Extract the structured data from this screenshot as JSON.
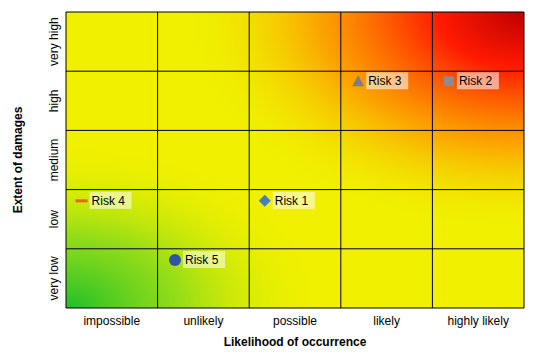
{
  "chart_data": {
    "type": "scatter",
    "xlabel": "Likelihood of occurrence",
    "ylabel": "Extent of damages",
    "xlim": [
      0,
      5
    ],
    "ylim": [
      0,
      5
    ],
    "xticks": [
      {
        "value": 0.5,
        "label": "impossible"
      },
      {
        "value": 1.5,
        "label": "unlikely"
      },
      {
        "value": 2.5,
        "label": "possible"
      },
      {
        "value": 3.5,
        "label": "likely"
      },
      {
        "value": 4.5,
        "label": "highly likely"
      }
    ],
    "yticks": [
      {
        "value": 0.5,
        "label": "very low"
      },
      {
        "value": 1.5,
        "label": "low"
      },
      {
        "value": 2.5,
        "label": "medium"
      },
      {
        "value": 3.5,
        "label": "high"
      },
      {
        "value": 4.5,
        "label": "very high"
      }
    ],
    "grid": true,
    "series": [
      {
        "name": "Risk 1",
        "color": "#4a7ebb",
        "marker": "diamond",
        "x": [
          2.17
        ],
        "values": [
          1.81
        ]
      },
      {
        "name": "Risk 2",
        "color": "#8c8c8c",
        "marker": "square",
        "x": [
          4.18
        ],
        "values": [
          3.83
        ]
      },
      {
        "name": "Risk 3",
        "color": "#7f7f7f",
        "marker": "triangle",
        "x": [
          3.19
        ],
        "values": [
          3.83
        ]
      },
      {
        "name": "Risk 4",
        "color": "#e46c0a",
        "marker": "dash",
        "x": [
          0.17
        ],
        "values": [
          1.81
        ]
      },
      {
        "name": "Risk 5",
        "color": "#2f55a4",
        "marker": "circle",
        "x": [
          1.19
        ],
        "values": [
          0.81
        ]
      }
    ]
  }
}
